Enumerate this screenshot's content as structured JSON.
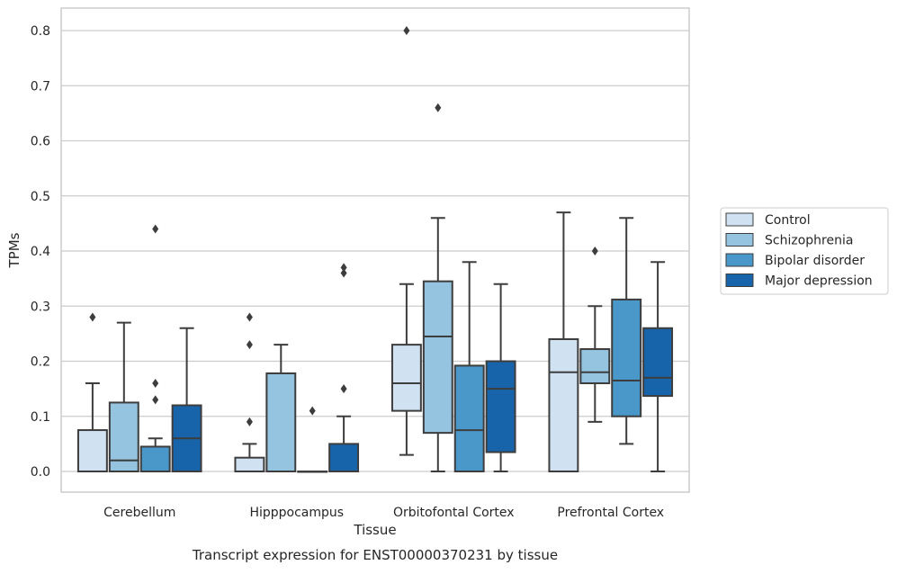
{
  "chart_data": {
    "type": "box",
    "caption": "Transcript expression for ENST00000370231 by tissue",
    "xlabel": "Tissue",
    "ylabel": "TPMs",
    "ylim": [
      -0.04,
      0.84
    ],
    "yticks": [
      "0.0",
      "0.1",
      "0.2",
      "0.3",
      "0.4",
      "0.5",
      "0.6",
      "0.7",
      "0.8"
    ],
    "grid": "horizontal",
    "legend_position": "right",
    "categories": [
      "Cerebellum",
      "Hipppocampus",
      "Orbitofontal Cortex",
      "Prefrontal Cortex"
    ],
    "series": [
      {
        "name": "Control",
        "color": "#d0e1f2",
        "boxes": [
          {
            "min": 0.0,
            "q1": 0.0,
            "median": 0.0,
            "q3": 0.075,
            "max": 0.16,
            "outliers": [
              0.28
            ]
          },
          {
            "min": 0.0,
            "q1": 0.0,
            "median": 0.0,
            "q3": 0.025,
            "max": 0.05,
            "outliers": [
              0.09,
              0.23,
              0.28
            ]
          },
          {
            "min": 0.03,
            "q1": 0.11,
            "median": 0.16,
            "q3": 0.23,
            "max": 0.34,
            "outliers": [
              0.8
            ]
          },
          {
            "min": 0.0,
            "q1": 0.0,
            "median": 0.18,
            "q3": 0.24,
            "max": 0.47,
            "outliers": []
          }
        ]
      },
      {
        "name": "Schizophrenia",
        "color": "#94c4df",
        "boxes": [
          {
            "min": 0.0,
            "q1": 0.0,
            "median": 0.02,
            "q3": 0.125,
            "max": 0.27,
            "outliers": []
          },
          {
            "min": 0.0,
            "q1": 0.0,
            "median": 0.0,
            "q3": 0.178,
            "max": 0.23,
            "outliers": []
          },
          {
            "min": 0.0,
            "q1": 0.07,
            "median": 0.245,
            "q3": 0.345,
            "max": 0.46,
            "outliers": [
              0.66
            ]
          },
          {
            "min": 0.09,
            "q1": 0.16,
            "median": 0.18,
            "q3": 0.222,
            "max": 0.3,
            "outliers": [
              0.4
            ]
          }
        ]
      },
      {
        "name": "Bipolar disorder",
        "color": "#4a98c9",
        "boxes": [
          {
            "min": 0.0,
            "q1": 0.0,
            "median": 0.0,
            "q3": 0.045,
            "max": 0.06,
            "outliers": [
              0.13,
              0.16,
              0.44
            ]
          },
          {
            "min": 0.0,
            "q1": 0.0,
            "median": 0.0,
            "q3": 0.0,
            "max": 0.0,
            "outliers": [
              0.11
            ]
          },
          {
            "min": 0.0,
            "q1": 0.0,
            "median": 0.075,
            "q3": 0.192,
            "max": 0.38,
            "outliers": []
          },
          {
            "min": 0.05,
            "q1": 0.1,
            "median": 0.165,
            "q3": 0.312,
            "max": 0.46,
            "outliers": []
          }
        ]
      },
      {
        "name": "Major depression",
        "color": "#1764ab",
        "boxes": [
          {
            "min": 0.0,
            "q1": 0.0,
            "median": 0.06,
            "q3": 0.12,
            "max": 0.26,
            "outliers": []
          },
          {
            "min": 0.0,
            "q1": 0.0,
            "median": 0.0,
            "q3": 0.05,
            "max": 0.1,
            "outliers": [
              0.15,
              0.36,
              0.37
            ]
          },
          {
            "min": 0.0,
            "q1": 0.035,
            "median": 0.15,
            "q3": 0.2,
            "max": 0.34,
            "outliers": []
          },
          {
            "min": 0.0,
            "q1": 0.137,
            "median": 0.17,
            "q3": 0.26,
            "max": 0.38,
            "outliers": []
          }
        ]
      }
    ]
  }
}
